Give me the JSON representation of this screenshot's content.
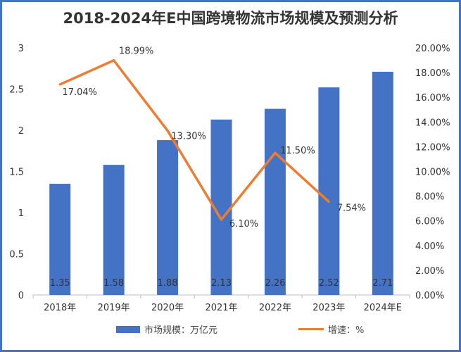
{
  "chart_data": {
    "type": "bar+line",
    "title": "2018-2024年E中国跨境物流市场规模及预测分析",
    "categories": [
      "2018年",
      "2019年",
      "2020年",
      "2021年",
      "2022年",
      "2023年",
      "2024年E"
    ],
    "series": [
      {
        "name": "市场规模：万亿元",
        "type": "bar",
        "axis": "left",
        "color": "#4472c4",
        "values": [
          1.35,
          1.58,
          1.88,
          2.13,
          2.26,
          2.52,
          2.71
        ],
        "labels": [
          "1.35",
          "1.58",
          "1.88",
          "2.13",
          "2.26",
          "2.52",
          "2.71"
        ]
      },
      {
        "name": "增速：%",
        "type": "line",
        "axis": "right",
        "color": "#ed7d31",
        "values": [
          17.04,
          18.99,
          13.3,
          6.1,
          11.5,
          7.54,
          null
        ],
        "labels": [
          "17.04%",
          "18.99%",
          "13.30%",
          "6.10%",
          "11.50%",
          "7.54%",
          ""
        ]
      }
    ],
    "left_axis": {
      "ylim": [
        0,
        3
      ],
      "ticks": [
        "0",
        "0.5",
        "1",
        "1.5",
        "2",
        "2.5",
        "3"
      ]
    },
    "right_axis": {
      "ylim": [
        0,
        20
      ],
      "ticks": [
        "0.00%",
        "2.00%",
        "4.00%",
        "6.00%",
        "8.00%",
        "10.00%",
        "12.00%",
        "14.00%",
        "16.00%",
        "18.00%",
        "20.00%"
      ]
    },
    "grid": false,
    "legend": "bottom"
  }
}
